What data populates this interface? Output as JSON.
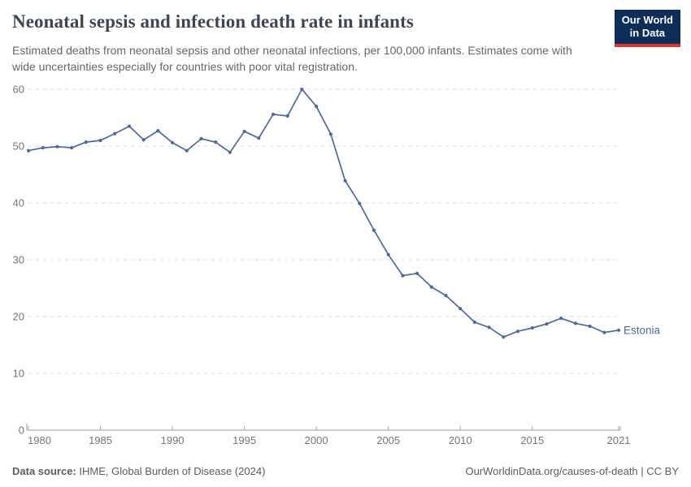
{
  "header": {
    "title": "Neonatal sepsis and infection death rate in infants",
    "subtitle": "Estimated deaths from neonatal sepsis and other neonatal infections, per 100,000 infants. Estimates come with wide uncertainties especially for countries with poor vital registration.",
    "logo": {
      "line1": "Our World",
      "line2": "in Data"
    }
  },
  "chart_data": {
    "type": "line",
    "title": "Neonatal sepsis and infection death rate in infants",
    "xlabel": "",
    "ylabel": "",
    "xlim": [
      1980,
      2021
    ],
    "ylim": [
      0,
      60
    ],
    "x_ticks": [
      1980,
      1985,
      1990,
      1995,
      2000,
      2005,
      2010,
      2015,
      2021
    ],
    "y_ticks": [
      0,
      10,
      20,
      30,
      40,
      50,
      60
    ],
    "grid": "horizontal-dashed",
    "legend_position": "end-of-line-label",
    "x": [
      1980,
      1981,
      1982,
      1983,
      1984,
      1985,
      1986,
      1987,
      1988,
      1989,
      1990,
      1991,
      1992,
      1993,
      1994,
      1995,
      1996,
      1997,
      1998,
      1999,
      2000,
      2001,
      2002,
      2003,
      2004,
      2005,
      2006,
      2007,
      2008,
      2009,
      2010,
      2011,
      2012,
      2013,
      2014,
      2015,
      2016,
      2017,
      2018,
      2019,
      2020,
      2021
    ],
    "series": [
      {
        "name": "Estonia",
        "color": "#4c6a9d",
        "values": [
          49.2,
          49.7,
          49.9,
          49.7,
          50.7,
          51.0,
          52.2,
          53.5,
          51.1,
          52.7,
          50.6,
          49.2,
          51.3,
          50.7,
          48.9,
          52.6,
          51.4,
          55.6,
          55.3,
          60.0,
          57.0,
          52.1,
          43.9,
          39.9,
          35.2,
          30.9,
          27.2,
          27.6,
          25.2,
          23.7,
          21.4,
          19.0,
          18.1,
          16.4,
          17.4,
          18.0,
          18.7,
          19.7,
          18.8,
          18.3,
          17.2,
          17.6
        ]
      }
    ]
  },
  "footer": {
    "source_label": "Data source:",
    "source_text": " IHME, Global Burden of Disease (2024)",
    "credit": "OurWorldinData.org/causes-of-death | CC BY"
  },
  "colors": {
    "line": "#4c6a9d",
    "title": "#3d4652",
    "subtitle": "#5f6770",
    "axis_line": "#9a9a9a",
    "tick": "#a8a8a8",
    "axis_label": "#757575",
    "gridline": "#dcdcdc",
    "logo_bg": "#0d2e5a",
    "logo_red": "#e0362c",
    "footer_text": "#5c5c5c"
  }
}
